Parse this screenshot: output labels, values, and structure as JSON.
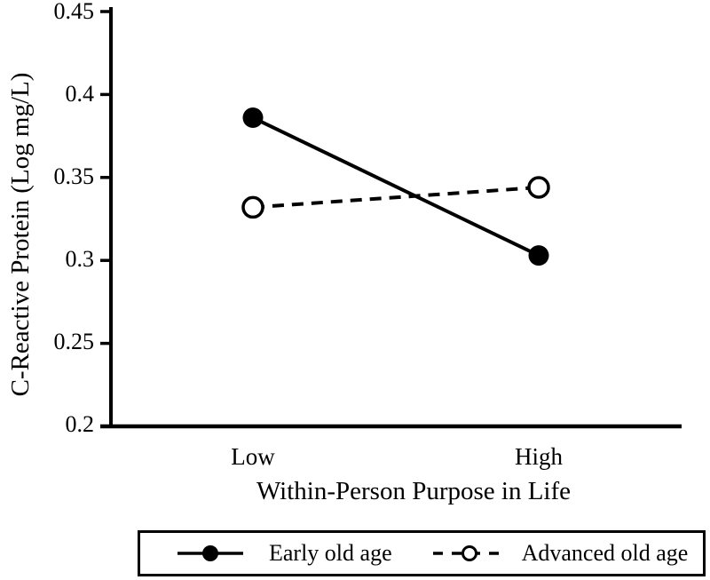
{
  "figure": {
    "background_color": "#ffffff",
    "ink_color": "#000000"
  },
  "chart_data": {
    "type": "line",
    "title": "",
    "xlabel": "Within-Person Purpose in Life",
    "ylabel": "C-Reactive Protein (Log mg/L)",
    "categories": [
      "Low",
      "High"
    ],
    "series": [
      {
        "name": "Early old age",
        "values": [
          0.386,
          0.303
        ],
        "line_style": "solid",
        "marker": "filled-circle",
        "color": "#000000"
      },
      {
        "name": "Advanced old age",
        "values": [
          0.332,
          0.344
        ],
        "line_style": "dashed",
        "marker": "open-circle",
        "color": "#000000"
      }
    ],
    "ylim": [
      0.2,
      0.45
    ],
    "ytick_values": [
      0.45,
      0.4,
      0.35,
      0.3,
      0.25,
      0.2
    ],
    "ytick_labels": [
      "0.45",
      "0.4",
      "0.35",
      "0.3",
      "0.25",
      "0.2"
    ],
    "grid": false,
    "legend_position": "bottom-boxed"
  }
}
